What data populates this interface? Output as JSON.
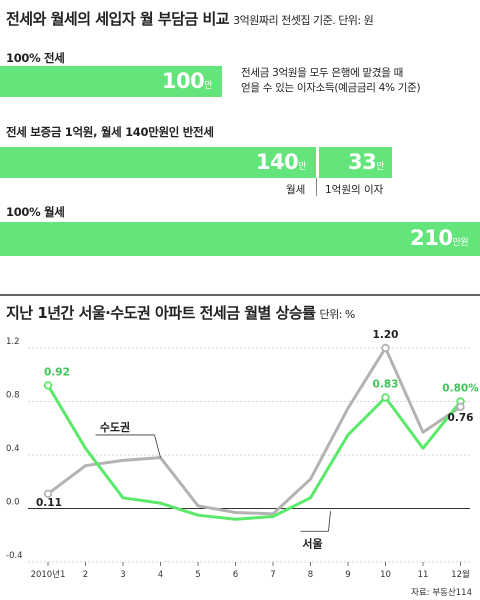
{
  "top": {
    "title": "전세와 월세의 세입자 월 부담금 비교",
    "subtitle": "3억원짜리 전셋집 기준. 단위: 원",
    "rows": [
      {
        "label": "100% 전세",
        "segments": [
          {
            "value": "100",
            "unit": "만"
          }
        ],
        "note": [
          "전세금 3억원을 모두 은행에 맡겼을 때",
          "얻을 수 있는 이자소득(예금금리 4% 기준)"
        ]
      },
      {
        "label": "전세 보증금 1억원, 월세 140만원인 반전세",
        "segments": [
          {
            "value": "140",
            "unit": "만",
            "caption": "월세"
          },
          {
            "value": "33",
            "unit": "만",
            "caption": "1억원의 이자"
          }
        ]
      },
      {
        "label": "100% 월세",
        "segments": [
          {
            "value": "210",
            "unit": "만원"
          }
        ]
      }
    ]
  },
  "bottom": {
    "title": "지난 1년간 서울·수도권 아파트 전세금 월별 상승률",
    "subtitle": "단위: %",
    "source": "자료: 부동산114"
  },
  "colors": {
    "bar": "#64e57c",
    "seoul": "#5ce86a",
    "capital": "#b3b3b3",
    "zero": "#333333"
  },
  "chart_data": [
    {
      "type": "bar",
      "categories": [
        "100% 전세",
        "전세 보증금 1억원, 월세 140만원인 반전세",
        "100% 월세"
      ],
      "series": [
        {
          "name": "월세",
          "values": [
            0,
            140,
            210
          ]
        },
        {
          "name": "1억원의 이자",
          "values": [
            100,
            33,
            0
          ]
        }
      ],
      "title": "전세와 월세의 세입자 월 부담금 비교",
      "units": "만원"
    },
    {
      "type": "line",
      "title": "지난 1년간 서울·수도권 아파트 전세금 월별 상승률",
      "categories": [
        "2010년1",
        "2",
        "3",
        "4",
        "5",
        "6",
        "7",
        "8",
        "9",
        "10",
        "11",
        "12월"
      ],
      "series": [
        {
          "name": "서울",
          "values": [
            0.92,
            0.45,
            0.08,
            0.04,
            -0.05,
            -0.08,
            -0.06,
            0.08,
            0.55,
            0.83,
            0.45,
            0.8
          ]
        },
        {
          "name": "수도권",
          "values": [
            0.11,
            0.32,
            0.36,
            0.38,
            0.02,
            -0.03,
            -0.04,
            0.22,
            0.75,
            1.2,
            0.57,
            0.76
          ]
        }
      ],
      "value_labels": [
        {
          "series": "서울",
          "index": 0,
          "text": "0.92"
        },
        {
          "series": "서울",
          "index": 9,
          "text": "0.83"
        },
        {
          "series": "서울",
          "index": 11,
          "text": "0.80%"
        },
        {
          "series": "수도권",
          "index": 0,
          "text": "0.11"
        },
        {
          "series": "수도권",
          "index": 9,
          "text": "1.20"
        },
        {
          "series": "수도권",
          "index": 11,
          "text": "0.76"
        }
      ],
      "ylim": [
        -0.4,
        1.2
      ],
      "yticks": [
        "1.2",
        "0.8",
        "0.4",
        "0.0",
        "-0.4"
      ],
      "grid": true
    }
  ]
}
